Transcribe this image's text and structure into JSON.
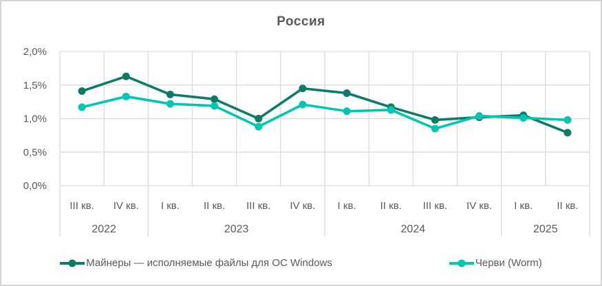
{
  "title": "Россия",
  "colors": {
    "grid": "#d9d9d9",
    "axis_text": "#595959",
    "title_text": "#595959",
    "border": "#d5d5d5",
    "background": "#ffffff"
  },
  "chart_data": {
    "type": "line",
    "title": "Россия",
    "xlabel": "",
    "ylabel": "",
    "units": "%",
    "ylim": [
      0,
      2.0
    ],
    "grid": true,
    "legend_position": "bottom",
    "y_ticks": [
      {
        "value": 0.0,
        "label": "0,0%"
      },
      {
        "value": 0.5,
        "label": "0,5%"
      },
      {
        "value": 1.0,
        "label": "1,0%"
      },
      {
        "value": 1.5,
        "label": "1,5%"
      },
      {
        "value": 2.0,
        "label": "2,0%"
      }
    ],
    "categories": [
      "III кв.",
      "IV кв.",
      "I кв.",
      "II кв.",
      "III кв.",
      "IV кв.",
      "I кв.",
      "II кв.",
      "III кв.",
      "IV кв.",
      "I кв.",
      "II кв."
    ],
    "year_groups": [
      {
        "label": "2022",
        "count": 2
      },
      {
        "label": "2023",
        "count": 4
      },
      {
        "label": "2024",
        "count": 4
      },
      {
        "label": "2025",
        "count": 2
      }
    ],
    "series": [
      {
        "name": "Майнеры — исполняемые файлы для ОС Windows",
        "color": "#0e7b68",
        "values": [
          1.41,
          1.63,
          1.36,
          1.29,
          1.0,
          1.45,
          1.38,
          1.17,
          0.98,
          1.02,
          1.05,
          0.79
        ]
      },
      {
        "name": "Черви (Worm)",
        "color": "#00c6b2",
        "values": [
          1.17,
          1.33,
          1.22,
          1.19,
          0.88,
          1.21,
          1.11,
          1.13,
          0.85,
          1.04,
          1.01,
          0.98
        ]
      }
    ]
  }
}
